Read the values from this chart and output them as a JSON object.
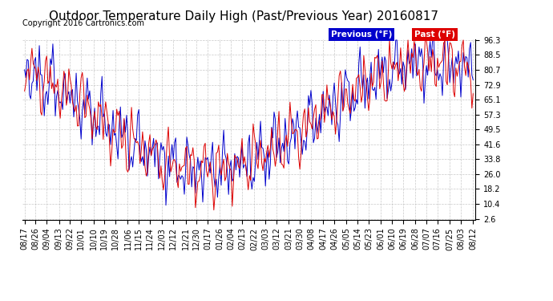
{
  "title": "Outdoor Temperature Daily High (Past/Previous Year) 20160817",
  "copyright": "Copyright 2016 Cartronics.com",
  "ylabel_ticks": [
    2.6,
    10.4,
    18.2,
    26.0,
    33.8,
    41.6,
    49.5,
    57.3,
    65.1,
    72.9,
    80.7,
    88.5,
    96.3
  ],
  "xtick_labels": [
    "08/17",
    "08/26",
    "09/04",
    "09/13",
    "09/22",
    "10/01",
    "10/10",
    "10/19",
    "10/28",
    "11/06",
    "11/15",
    "11/24",
    "12/03",
    "12/12",
    "12/21",
    "12/30",
    "01/17",
    "01/26",
    "02/04",
    "02/13",
    "02/22",
    "03/03",
    "03/12",
    "03/21",
    "03/30",
    "04/08",
    "04/17",
    "04/26",
    "05/05",
    "05/14",
    "05/23",
    "06/01",
    "06/10",
    "06/19",
    "06/28",
    "07/07",
    "07/16",
    "07/25",
    "08/03",
    "08/12"
  ],
  "legend_previous_label": "Previous (°F)",
  "legend_past_label": "Past (°F)",
  "previous_color": "#0000cc",
  "past_color": "#dd0000",
  "background_color": "#ffffff",
  "grid_color": "#bbbbbb",
  "title_fontsize": 11,
  "copyright_fontsize": 7,
  "tick_fontsize": 7,
  "ylim_min": 2.6,
  "ylim_max": 96.3
}
